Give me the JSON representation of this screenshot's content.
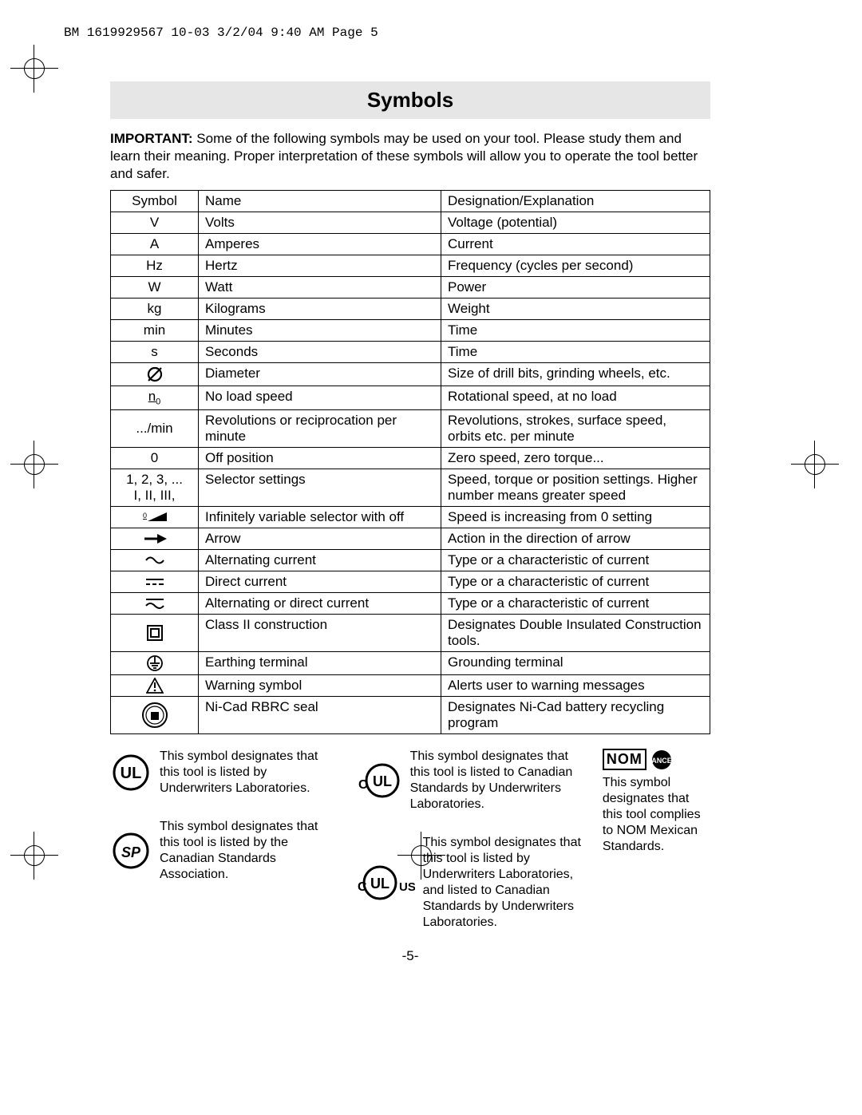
{
  "header": "BM 1619929567 10-03  3/2/04  9:40 AM  Page 5",
  "title": "Symbols",
  "intro_bold": "IMPORTANT:",
  "intro_rest": " Some of the following symbols may be used on your tool.  Please study them and learn their meaning.  Proper interpretation of these symbols will allow you to operate the tool better and safer.",
  "table_headers": {
    "c1": "Symbol",
    "c2": "Name",
    "c3": "Designation/Explanation"
  },
  "rows": [
    {
      "sym": "V",
      "name": "Volts",
      "desc": "Voltage (potential)"
    },
    {
      "sym": "A",
      "name": "Amperes",
      "desc": "Current"
    },
    {
      "sym": "Hz",
      "name": "Hertz",
      "desc": "Frequency (cycles per second)"
    },
    {
      "sym": "W",
      "name": "Watt",
      "desc": "Power"
    },
    {
      "sym": "kg",
      "name": "Kilograms",
      "desc": "Weight"
    },
    {
      "sym": "min",
      "name": "Minutes",
      "desc": "Time"
    },
    {
      "sym": "s",
      "name": "Seconds",
      "desc": "Time"
    },
    {
      "sym": "diameter",
      "name": "Diameter",
      "desc": "Size of drill bits, grinding wheels,  etc."
    },
    {
      "sym": "n0",
      "name": "No load speed",
      "desc": "Rotational speed, at no load"
    },
    {
      "sym": ".../min",
      "name": "Revolutions or reciprocation per minute",
      "desc": "Revolutions, strokes, surface speed, orbits etc. per minute"
    },
    {
      "sym": "0",
      "name": "Off position",
      "desc": "Zero speed, zero torque..."
    },
    {
      "sym": "1, 2, 3, ...\nI, II, III,",
      "name": "Selector settings",
      "desc": "Speed, torque or position settings. Higher number means greater speed"
    },
    {
      "sym": "selector-off",
      "name": "Infinitely variable selector with off",
      "desc": "Speed is increasing from 0 setting"
    },
    {
      "sym": "arrow",
      "name": "Arrow",
      "desc": "Action in the direction of arrow"
    },
    {
      "sym": "ac",
      "name": "Alternating current",
      "desc": "Type or a characteristic of current"
    },
    {
      "sym": "dc",
      "name": "Direct current",
      "desc": "Type or a characteristic of current"
    },
    {
      "sym": "acdc",
      "name": "Alternating or direct current",
      "desc": "Type or a characteristic of current"
    },
    {
      "sym": "class2",
      "name": "Class II  construction",
      "desc": "Designates Double Insulated Construction tools."
    },
    {
      "sym": "earth",
      "name": "Earthing terminal",
      "desc": "Grounding terminal"
    },
    {
      "sym": "warning",
      "name": "Warning symbol",
      "desc": "Alerts user to warning messages"
    },
    {
      "sym": "rbrc",
      "name": "Ni-Cad RBRC seal",
      "desc": "Designates Ni-Cad battery recycling program"
    }
  ],
  "certs": {
    "ul": "This symbol designates that this tool is listed by Underwriters Laboratories.",
    "csa": "This symbol designates that this tool is listed by the Canadian Standards Association.",
    "cul": "This symbol designates that this tool is listed to Canadian Standards by Underwriters Laboratories.",
    "culus": "This symbol designates that this tool is listed by Underwriters Laboratories, and listed to Canadian Standards by Underwriters Laboratories.",
    "nom_label": "NOM",
    "nom": "This symbol designates that this tool complies to NOM Mexican Standards."
  },
  "page_number": "-5-"
}
